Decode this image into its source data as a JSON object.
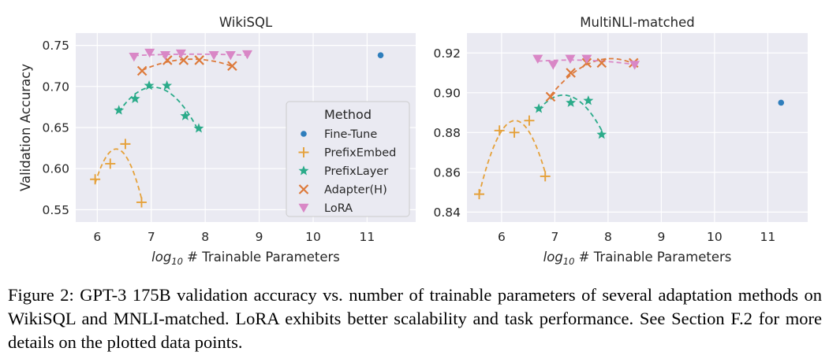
{
  "caption": "Figure 2: GPT-3 175B validation accuracy vs. number of trainable parameters of several adaptation methods on WikiSQL and MNLI-matched. LoRA exhibits better scalability and task performance. See Section F.2 for more details on the plotted data points.",
  "legend": {
    "title": "Method",
    "entries": [
      {
        "name": "Fine-Tune",
        "color": "#2f7ebc",
        "marker": "dot"
      },
      {
        "name": "PrefixEmbed",
        "color": "#e5a13a",
        "marker": "plus"
      },
      {
        "name": "PrefixLayer",
        "color": "#2bab8a",
        "marker": "star"
      },
      {
        "name": "Adapter(H)",
        "color": "#dd7a3b",
        "marker": "x"
      },
      {
        "name": "LoRA",
        "color": "#d987c6",
        "marker": "triangle-down"
      }
    ]
  },
  "chart_data": [
    {
      "type": "scatter",
      "title": "WikiSQL",
      "xlabel": "log10 # Trainable Parameters",
      "ylabel": "Validation Accuracy",
      "xlim": [
        5.6,
        11.9
      ],
      "ylim": [
        0.535,
        0.765
      ],
      "xticks": [
        6,
        7,
        8,
        9,
        10,
        11
      ],
      "yticks": [
        0.55,
        0.6,
        0.65,
        0.7,
        0.75
      ],
      "ytick_labels": [
        "0.55",
        "0.60",
        "0.65",
        "0.70",
        "0.75"
      ],
      "grid": true,
      "legend_position": "lower-right",
      "series": [
        {
          "name": "Fine-Tune",
          "x": [
            11.25
          ],
          "y": [
            0.738
          ]
        },
        {
          "name": "PrefixEmbed",
          "x": [
            5.96,
            6.24,
            6.52,
            6.82
          ],
          "y": [
            0.587,
            0.606,
            0.63,
            0.559
          ]
        },
        {
          "name": "PrefixLayer",
          "x": [
            6.4,
            6.7,
            6.96,
            7.29,
            7.63,
            7.88
          ],
          "y": [
            0.671,
            0.685,
            0.701,
            0.701,
            0.664,
            0.649
          ]
        },
        {
          "name": "Adapter(H)",
          "x": [
            6.83,
            7.3,
            7.6,
            7.89,
            8.5
          ],
          "y": [
            0.719,
            0.732,
            0.732,
            0.732,
            0.725
          ]
        },
        {
          "name": "LoRA",
          "x": [
            6.68,
            6.97,
            7.26,
            7.55,
            8.16,
            8.47,
            8.78
          ],
          "y": [
            0.736,
            0.741,
            0.738,
            0.74,
            0.738,
            0.738,
            0.739
          ]
        }
      ]
    },
    {
      "type": "scatter",
      "title": "MultiNLI-matched",
      "xlabel": "log10 # Trainable Parameters",
      "ylabel": "",
      "xlim": [
        5.35,
        11.75
      ],
      "ylim": [
        0.835,
        0.93
      ],
      "xticks": [
        6,
        7,
        8,
        9,
        10,
        11
      ],
      "yticks": [
        0.84,
        0.86,
        0.88,
        0.9,
        0.92
      ],
      "ytick_labels": [
        "0.84",
        "0.86",
        "0.88",
        "0.90",
        "0.92"
      ],
      "grid": true,
      "series": [
        {
          "name": "Fine-Tune",
          "x": [
            11.25
          ],
          "y": [
            0.895
          ]
        },
        {
          "name": "PrefixEmbed",
          "x": [
            5.58,
            5.96,
            6.24,
            6.52,
            6.82
          ],
          "y": [
            0.849,
            0.881,
            0.88,
            0.886,
            0.858
          ]
        },
        {
          "name": "PrefixLayer",
          "x": [
            6.7,
            7.3,
            7.63,
            7.88
          ],
          "y": [
            0.892,
            0.895,
            0.896,
            0.879
          ]
        },
        {
          "name": "Adapter(H)",
          "x": [
            6.92,
            7.3,
            7.6,
            7.88,
            8.48
          ],
          "y": [
            0.898,
            0.91,
            0.915,
            0.915,
            0.915
          ]
        },
        {
          "name": "LoRA",
          "x": [
            6.68,
            6.97,
            7.29,
            7.6,
            8.5
          ],
          "y": [
            0.917,
            0.914,
            0.917,
            0.917,
            0.914
          ]
        }
      ]
    }
  ]
}
